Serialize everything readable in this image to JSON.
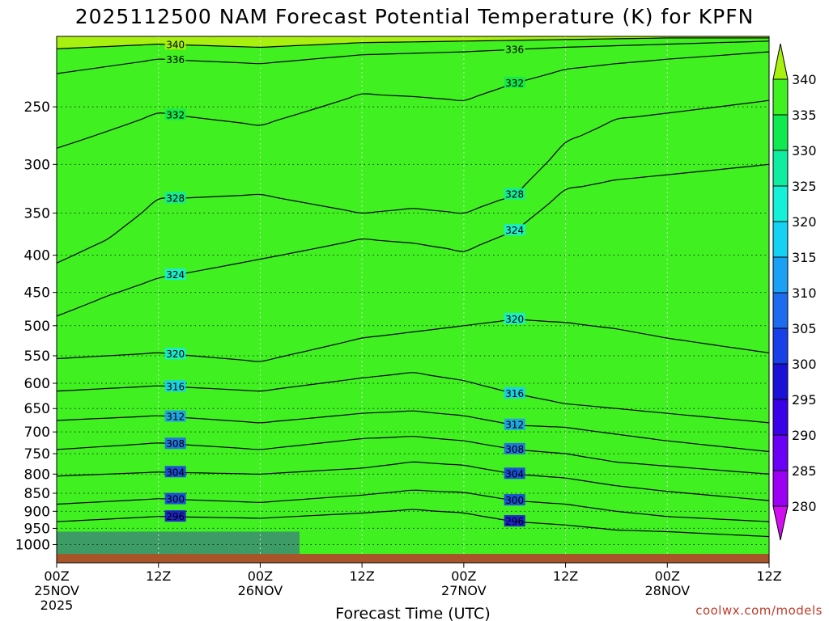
{
  "title": "2025112500 NAM Forecast Potential Temperature (K) for KPFN",
  "xlabel": "Forecast Time (UTC)",
  "credit": "coolwx.com/models",
  "chart_data": {
    "type": "heatmap",
    "title": "2025112500 NAM Forecast Potential Temperature (K) for KPFN",
    "xlabel": "Forecast Time (UTC)",
    "ylabel": "",
    "y_axis": {
      "unit": "hPa",
      "ticks": [
        250,
        300,
        350,
        400,
        450,
        500,
        550,
        600,
        650,
        700,
        750,
        800,
        850,
        900,
        950,
        1000
      ],
      "range": [
        1030,
        200
      ],
      "scale": "log"
    },
    "x_axis": {
      "range_hours": [
        0,
        84
      ],
      "ticks": [
        {
          "hour": 0,
          "top": "00Z",
          "mid": "25NOV",
          "bot": "2025"
        },
        {
          "hour": 12,
          "top": "12Z",
          "mid": "",
          "bot": ""
        },
        {
          "hour": 24,
          "top": "00Z",
          "mid": "26NOV",
          "bot": ""
        },
        {
          "hour": 36,
          "top": "12Z",
          "mid": "",
          "bot": ""
        },
        {
          "hour": 48,
          "top": "00Z",
          "mid": "27NOV",
          "bot": ""
        },
        {
          "hour": 60,
          "top": "12Z",
          "mid": "",
          "bot": ""
        },
        {
          "hour": 72,
          "top": "00Z",
          "mid": "28NOV",
          "bot": ""
        },
        {
          "hour": 84,
          "top": "12Z",
          "mid": "",
          "bot": ""
        }
      ]
    },
    "colorbar": {
      "units": "K",
      "levels": [
        280,
        285,
        290,
        295,
        300,
        305,
        310,
        315,
        320,
        325,
        330,
        335,
        340
      ],
      "colors": [
        "#d20ff0",
        "#9b00f5",
        "#6a00f5",
        "#3a00e8",
        "#1a10d8",
        "#1740e8",
        "#1d6cf0",
        "#1aa0f5",
        "#15d2f5",
        "#15f0d8",
        "#10eca0",
        "#10ea50",
        "#40f020",
        "#a8f010"
      ]
    },
    "series": [
      {
        "level": 296,
        "label": "296",
        "values": [
          [
            0,
            930
          ],
          [
            12,
            915
          ],
          [
            24,
            920
          ],
          [
            36,
            905
          ],
          [
            42,
            895
          ],
          [
            48,
            905
          ],
          [
            54,
            930
          ],
          [
            60,
            940
          ],
          [
            66,
            955
          ],
          [
            72,
            960
          ],
          [
            84,
            975
          ]
        ]
      },
      {
        "level": 300,
        "label": "300",
        "values": [
          [
            0,
            880
          ],
          [
            12,
            865
          ],
          [
            24,
            875
          ],
          [
            36,
            855
          ],
          [
            42,
            842
          ],
          [
            48,
            848
          ],
          [
            54,
            870
          ],
          [
            60,
            880
          ],
          [
            66,
            900
          ],
          [
            72,
            915
          ],
          [
            84,
            930
          ]
        ]
      },
      {
        "level": 304,
        "label": "304",
        "values": [
          [
            0,
            805
          ],
          [
            12,
            795
          ],
          [
            24,
            800
          ],
          [
            36,
            785
          ],
          [
            42,
            770
          ],
          [
            48,
            778
          ],
          [
            54,
            800
          ],
          [
            60,
            810
          ],
          [
            66,
            830
          ],
          [
            72,
            845
          ],
          [
            84,
            870
          ]
        ]
      },
      {
        "level": 308,
        "label": "308",
        "values": [
          [
            0,
            740
          ],
          [
            12,
            725
          ],
          [
            24,
            740
          ],
          [
            36,
            715
          ],
          [
            42,
            710
          ],
          [
            48,
            720
          ],
          [
            54,
            740
          ],
          [
            60,
            750
          ],
          [
            66,
            770
          ],
          [
            72,
            780
          ],
          [
            84,
            800
          ]
        ]
      },
      {
        "level": 312,
        "label": "312",
        "values": [
          [
            0,
            675
          ],
          [
            12,
            665
          ],
          [
            24,
            680
          ],
          [
            36,
            660
          ],
          [
            42,
            655
          ],
          [
            48,
            665
          ],
          [
            54,
            685
          ],
          [
            60,
            690
          ],
          [
            66,
            705
          ],
          [
            72,
            720
          ],
          [
            84,
            745
          ]
        ]
      },
      {
        "level": 316,
        "label": "316",
        "values": [
          [
            0,
            615
          ],
          [
            12,
            605
          ],
          [
            24,
            615
          ],
          [
            36,
            590
          ],
          [
            42,
            580
          ],
          [
            48,
            595
          ],
          [
            54,
            620
          ],
          [
            60,
            640
          ],
          [
            66,
            650
          ],
          [
            72,
            660
          ],
          [
            84,
            680
          ]
        ]
      },
      {
        "level": 320,
        "label": "320",
        "values": [
          [
            0,
            555
          ],
          [
            12,
            545
          ],
          [
            24,
            560
          ],
          [
            36,
            520
          ],
          [
            42,
            510
          ],
          [
            48,
            500
          ],
          [
            54,
            490
          ],
          [
            60,
            495
          ],
          [
            66,
            505
          ],
          [
            72,
            520
          ],
          [
            84,
            545
          ]
        ]
      },
      {
        "level": 324,
        "label": "324",
        "values": [
          [
            0,
            485
          ],
          [
            6,
            455
          ],
          [
            12,
            430
          ],
          [
            24,
            405
          ],
          [
            36,
            380
          ],
          [
            42,
            385
          ],
          [
            48,
            395
          ],
          [
            54,
            370
          ],
          [
            60,
            325
          ],
          [
            66,
            315
          ],
          [
            72,
            310
          ],
          [
            84,
            300
          ]
        ]
      },
      {
        "level": 328,
        "label": "328",
        "values": [
          [
            0,
            410
          ],
          [
            6,
            380
          ],
          [
            12,
            335
          ],
          [
            24,
            330
          ],
          [
            36,
            350
          ],
          [
            42,
            345
          ],
          [
            48,
            350
          ],
          [
            54,
            330
          ],
          [
            60,
            280
          ],
          [
            66,
            260
          ],
          [
            72,
            255
          ],
          [
            84,
            245
          ]
        ]
      },
      {
        "level": 332,
        "label": "332",
        "values": [
          [
            0,
            285
          ],
          [
            6,
            270
          ],
          [
            12,
            255
          ],
          [
            24,
            265
          ],
          [
            36,
            240
          ],
          [
            42,
            242
          ],
          [
            48,
            245
          ],
          [
            54,
            232
          ],
          [
            60,
            222
          ],
          [
            66,
            218
          ],
          [
            72,
            215
          ],
          [
            84,
            210
          ]
        ]
      },
      {
        "level": 336,
        "label": "336",
        "values": [
          [
            0,
            225
          ],
          [
            12,
            215
          ],
          [
            24,
            218
          ],
          [
            36,
            212
          ],
          [
            48,
            210
          ],
          [
            60,
            207
          ],
          [
            72,
            205
          ],
          [
            84,
            203
          ]
        ]
      },
      {
        "level": 340,
        "label": "340",
        "values": [
          [
            0,
            208
          ],
          [
            12,
            205
          ],
          [
            24,
            207
          ],
          [
            36,
            204
          ],
          [
            48,
            203
          ],
          [
            60,
            202
          ],
          [
            72,
            201
          ],
          [
            84,
            201
          ]
        ]
      }
    ],
    "grid": true,
    "ground_color": "#a8552a",
    "line_color": "#000000",
    "legend": "right colorbar"
  }
}
